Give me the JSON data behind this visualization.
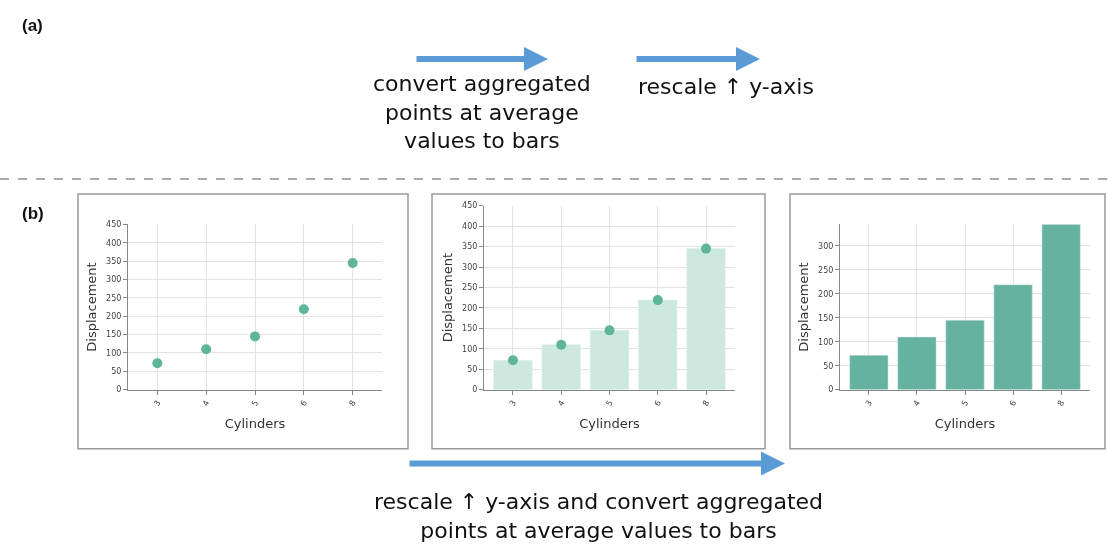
{
  "chart_data": [
    {
      "type": "scatter",
      "categories": [
        "3",
        "4",
        "5",
        "6",
        "8"
      ],
      "values": [
        72,
        110,
        145,
        219,
        345
      ],
      "color": "#5fb49c",
      "xlabel": "Cylinders",
      "ylabel": "Displacement",
      "ylim": [
        0,
        450
      ],
      "yticks": [
        0,
        50,
        100,
        150,
        200,
        250,
        300,
        350,
        400,
        450
      ],
      "grid": true,
      "annotations": [
        "(a)",
        "convert aggregated points at average values to bars",
        "rescale ↑ y-axis",
        "(b)"
      ]
    },
    {
      "type": "bar",
      "categories": [
        "3",
        "4",
        "5",
        "6",
        "8"
      ],
      "xlabel": "Cylinders",
      "ylabel": "Displacement",
      "ylim": [
        0,
        450
      ],
      "yticks": [
        0,
        50,
        100,
        150,
        200,
        250,
        300,
        350,
        400,
        450
      ],
      "grid": true,
      "series": [
        {
          "type": "bar",
          "color": "#cde8df",
          "values": [
            72,
            110,
            145,
            219,
            345
          ]
        },
        {
          "type": "scatter",
          "color": "#5fb49c",
          "values": [
            72,
            110,
            145,
            219,
            345
          ]
        }
      ]
    },
    {
      "type": "bar",
      "categories": [
        "3",
        "4",
        "5",
        "6",
        "8"
      ],
      "values": [
        72,
        110,
        145,
        219,
        345
      ],
      "color": "#66b2a0",
      "xlabel": "Cylinders",
      "ylabel": "Displacement",
      "ylim": [
        0,
        345
      ],
      "yticks": [
        0,
        50,
        100,
        150,
        200,
        250,
        300
      ],
      "grid": true,
      "annotations": [
        "rescale ↑ y-axis and convert aggregated points at average values to bars"
      ]
    }
  ]
}
